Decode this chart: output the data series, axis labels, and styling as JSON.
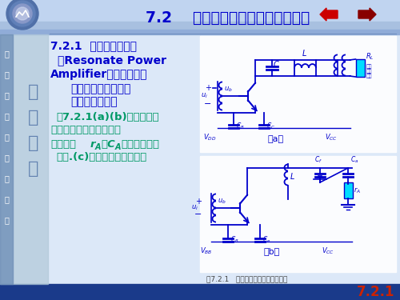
{
  "bg_main_color": "#dce8f8",
  "bg_top_color": "#b8cce8",
  "bg_bottom_color": "#1a3a8a",
  "left_panel_color": "#8aaac8",
  "title": "7.2    谐振功率放大器的原理与应用",
  "title_color": "#0000cc",
  "title_fontsize": 13.5,
  "sub1": "7.2.1  谐振功率放大器",
  "sub2": "（Resonate Power",
  "sub3": "Amplifier）的工作原理",
  "sub_color": "#0000cc",
  "sub_fontsize": 10,
  "sec1": "一．谐振功率放大器",
  "sec2": "的工作原理分析",
  "sec_color": "#0000cc",
  "sec_fontsize": 10,
  "body1": "图7.2.1(a)(b)分别为发送",
  "body2": "设备的中间放大级和末级",
  "body3a": "放大器（",
  "body3b": "r",
  "body3c": "A",
  "body3d": "、C",
  "body3e": "A",
  "body3f": "为天线等效电",
  "body4": "路）.(c)为相应的原理电路。",
  "body_color": "#009966",
  "body_fontsize": 9.5,
  "caption": "图7.2.1   丙类谐振放大器的电路组成",
  "caption_color": "#444444",
  "caption_fontsize": 6.5,
  "page_num": "7.2.1",
  "page_num_color": "#cc2200",
  "page_num_fontsize": 12,
  "circuit_color": "#0000cc",
  "vert_texts": [
    "信",
    "息",
    "科",
    "学",
    "与",
    "工",
    "程",
    "学",
    "院"
  ],
  "callig_texts": [
    "山",
    "东",
    "大",
    "学"
  ],
  "arrow_left_color": "#cc0000",
  "arrow_right_color": "#880000"
}
